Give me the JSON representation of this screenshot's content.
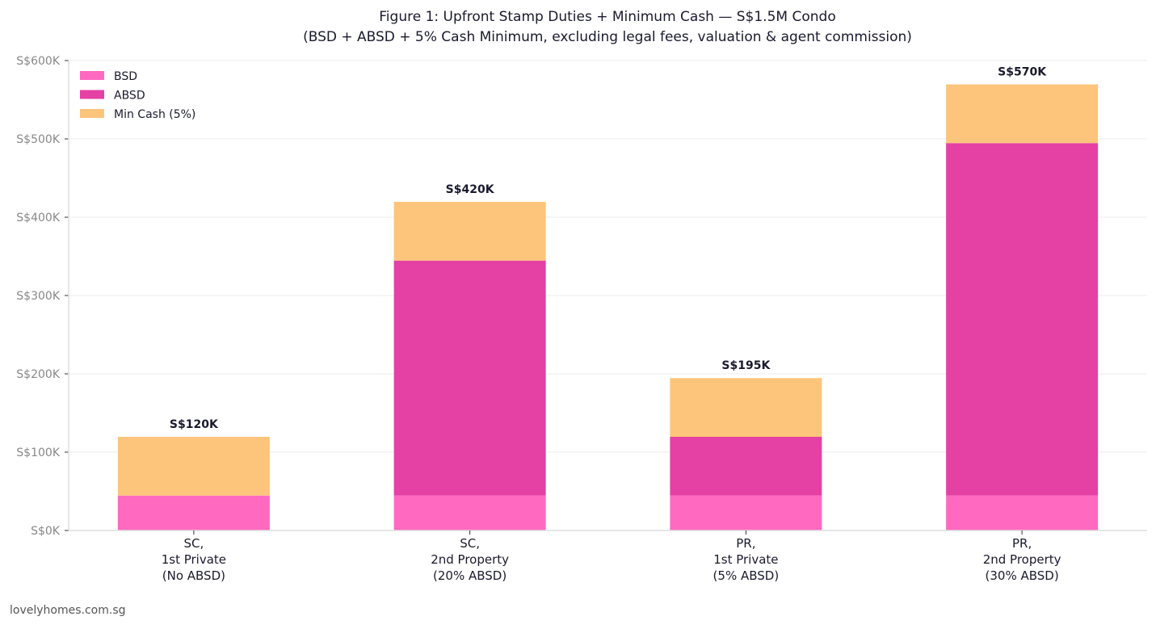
{
  "chart_data": {
    "type": "bar",
    "stacked": true,
    "title": "Figure 1: Upfront Stamp Duties + Minimum Cash — S$1.5M Condo",
    "subtitle": "(BSD + ABSD + 5% Cash Minimum, excluding legal fees, valuation & agent commission)",
    "xlabel": "",
    "ylabel": "",
    "ylim": [
      0,
      600000
    ],
    "yticks": [
      0,
      100000,
      200000,
      300000,
      400000,
      500000,
      600000
    ],
    "ytick_labels": [
      "S$0K",
      "S$100K",
      "S$200K",
      "S$300K",
      "S$400K",
      "S$500K",
      "S$600K"
    ],
    "grid": "horizontal",
    "legend_position": "top-left",
    "categories": [
      [
        "SC,",
        "1st Private",
        "(No ABSD)"
      ],
      [
        "SC,",
        "2nd Property",
        "(20% ABSD)"
      ],
      [
        "PR,",
        "1st Private",
        "(5% ABSD)"
      ],
      [
        "PR,",
        "2nd Property",
        "(30% ABSD)"
      ]
    ],
    "series": [
      {
        "name": "BSD",
        "color": "#ff69c0",
        "values": [
          44600,
          44600,
          44600,
          44600
        ]
      },
      {
        "name": "ABSD",
        "color": "#e540a4",
        "values": [
          0,
          300000,
          75000,
          450000
        ]
      },
      {
        "name": "Min Cash (5%)",
        "color": "#fdc57b",
        "values": [
          75000,
          75000,
          75000,
          75000
        ]
      }
    ],
    "data_labels": [
      "S$120K",
      "S$420K",
      "S$195K",
      "S$570K"
    ]
  },
  "source": "lovelyhomes.com.sg"
}
